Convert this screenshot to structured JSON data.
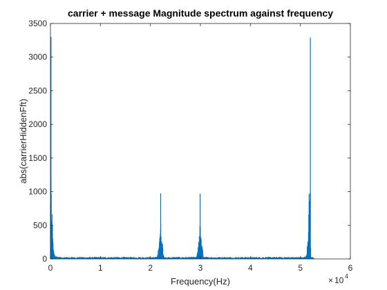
{
  "chart_data": {
    "type": "line",
    "title": "carrier + message Magnitude spectrum against frequency",
    "xlabel": "Frequency(Hz)",
    "ylabel": "abs(carrierHiddenFft)",
    "x_exponent": "10",
    "x_exponent_power": "4",
    "xlim": [
      0,
      60000
    ],
    "ylim": [
      0,
      3500
    ],
    "xticks": [
      0,
      10000,
      20000,
      30000,
      40000,
      50000,
      60000
    ],
    "xtick_labels": [
      "0",
      "1",
      "2",
      "3",
      "4",
      "5",
      "6"
    ],
    "yticks": [
      0,
      500,
      1000,
      1500,
      2000,
      2500,
      3000,
      3500
    ],
    "ytick_labels": [
      "0",
      "500",
      "1000",
      "1500",
      "2000",
      "2500",
      "3000",
      "3500"
    ],
    "grid": false,
    "series": [
      {
        "color": "#0072BD",
        "peaks": [
          {
            "x": 0,
            "y": 3300
          },
          {
            "x": 22050,
            "y": 975
          },
          {
            "x": 29950,
            "y": 970
          },
          {
            "x": 52000,
            "y": 3290
          }
        ],
        "clusters": [
          {
            "center": 0,
            "half_width": 700,
            "level": 1300,
            "side": "right"
          },
          {
            "center": 22050,
            "half_width": 650,
            "level": 550,
            "side": "both"
          },
          {
            "center": 29950,
            "half_width": 650,
            "level": 550,
            "side": "both"
          },
          {
            "center": 52000,
            "half_width": 700,
            "level": 1400,
            "side": "left"
          }
        ],
        "noise_floor": 25
      }
    ]
  }
}
